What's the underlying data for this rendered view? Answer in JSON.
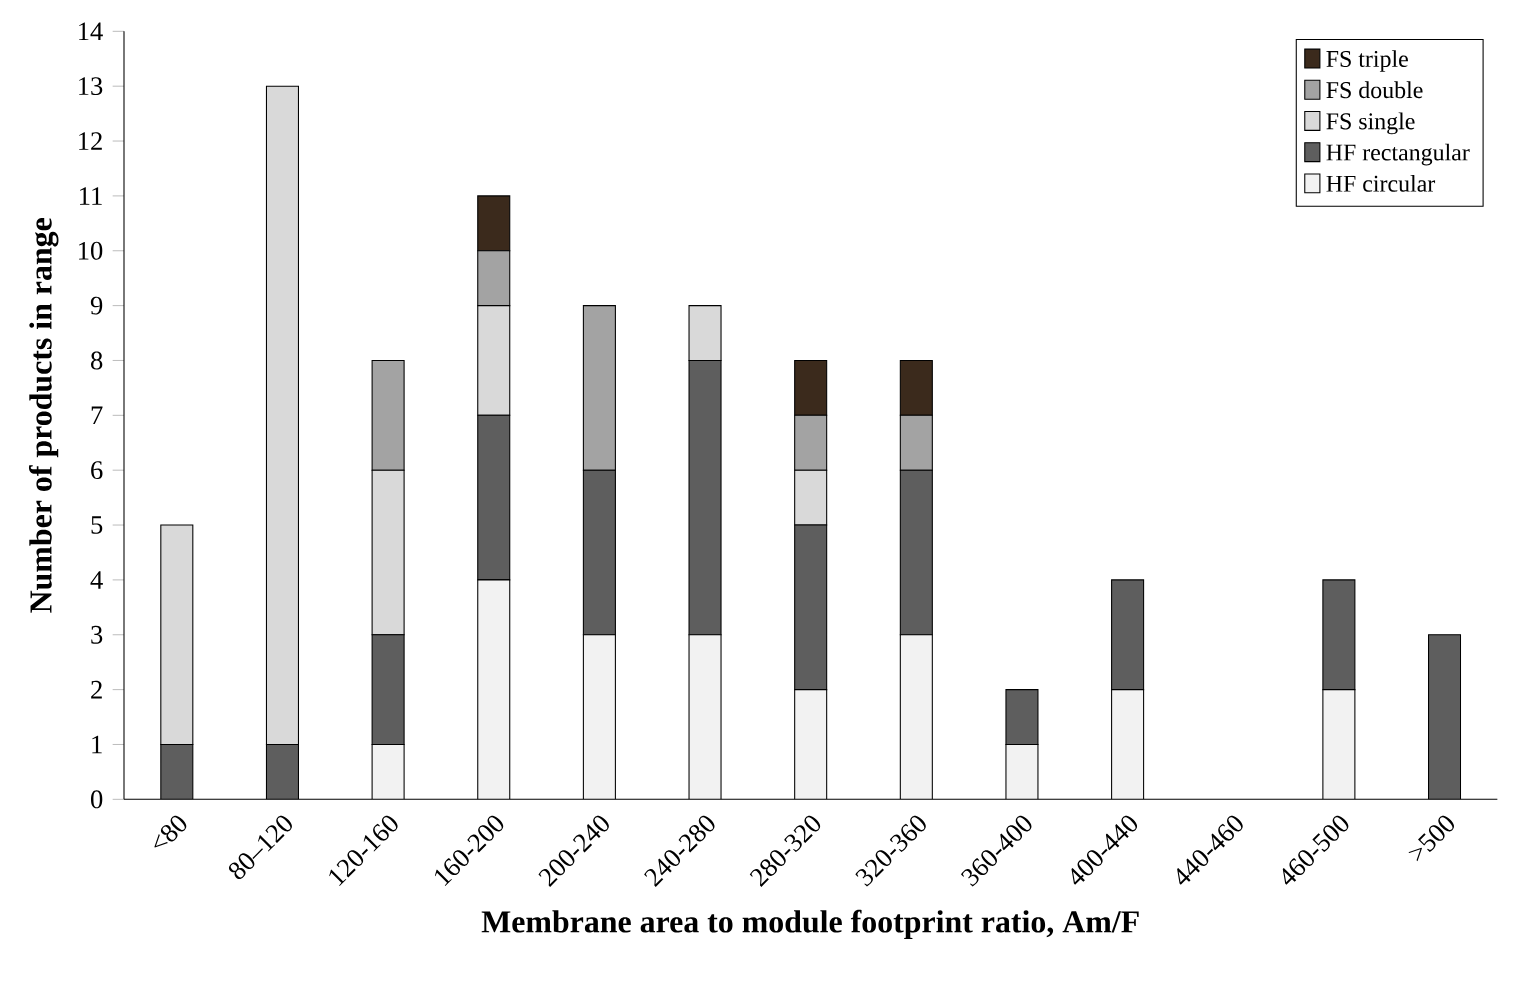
{
  "chart_data": {
    "type": "bar",
    "stacked": true,
    "xlabel": "Membrane area to module footprint ratio, Am/F",
    "ylabel": "Number of products in range",
    "categories": [
      "<80",
      "80–120",
      "120-160",
      "160-200",
      "200-240",
      "240-280",
      "280-320",
      "320-360",
      "360-400",
      "400-440",
      "440-460",
      "460-500",
      ">500"
    ],
    "series": [
      {
        "name": "HF circular",
        "color": "#f2f2f2",
        "values": [
          0,
          0,
          1,
          4,
          3,
          3,
          2,
          3,
          1,
          2,
          0,
          2,
          0
        ]
      },
      {
        "name": "HF rectangular",
        "color": "#5e5e5e",
        "values": [
          1,
          1,
          2,
          3,
          3,
          5,
          3,
          3,
          1,
          2,
          0,
          2,
          3
        ]
      },
      {
        "name": "FS single",
        "color": "#d9d9d9",
        "values": [
          4,
          12,
          3,
          2,
          0,
          1,
          1,
          0,
          0,
          0,
          0,
          0,
          0
        ]
      },
      {
        "name": "FS double",
        "color": "#a3a3a3",
        "values": [
          0,
          0,
          2,
          1,
          3,
          0,
          1,
          1,
          0,
          0,
          0,
          0,
          0
        ]
      },
      {
        "name": "FS triple",
        "color": "#3b2a1c",
        "values": [
          0,
          0,
          0,
          1,
          0,
          0,
          1,
          1,
          0,
          0,
          0,
          0,
          0
        ]
      }
    ],
    "ylim": [
      0,
      14
    ],
    "yticks": [
      0,
      1,
      2,
      3,
      4,
      5,
      6,
      7,
      8,
      9,
      10,
      11,
      12,
      13,
      14
    ],
    "legend": "top right"
  }
}
